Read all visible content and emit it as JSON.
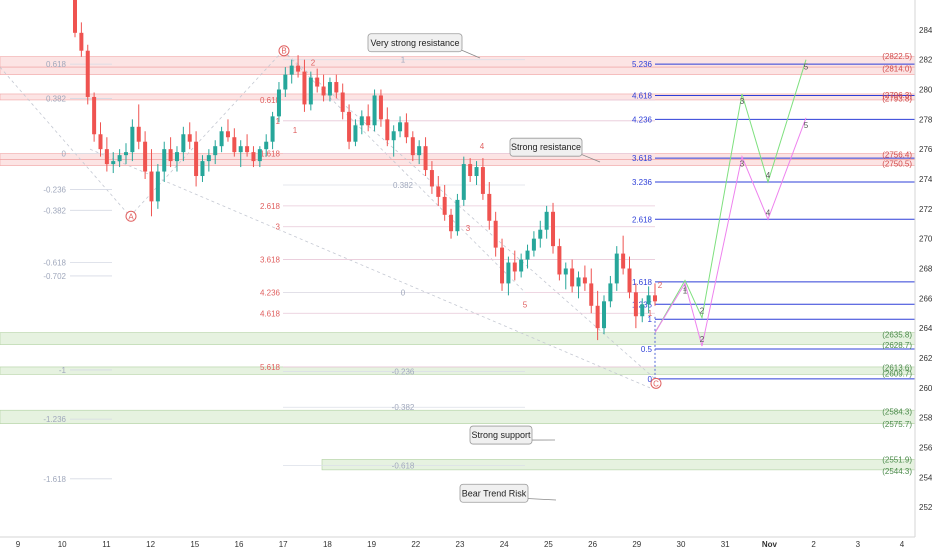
{
  "chart_data": {
    "type": "candlestick",
    "y_axis": {
      "min": 2500,
      "max": 2860,
      "ticks": [
        2520,
        2540,
        2560,
        2580,
        2600,
        2620,
        2640,
        2660,
        2680,
        2700,
        2720,
        2740,
        2760,
        2780,
        2800,
        2820,
        2840
      ]
    },
    "x_axis": {
      "tick_labels": [
        "9",
        "10",
        "11",
        "12",
        "15",
        "16",
        "17",
        "18",
        "19",
        "22",
        "23",
        "24",
        "25",
        "26",
        "29",
        "30",
        "31",
        "Nov",
        "2",
        "3",
        "4"
      ]
    },
    "candles": [
      [
        2860,
        2866,
        2835,
        2838
      ],
      [
        2838,
        2845,
        2822,
        2826
      ],
      [
        2826,
        2830,
        2790,
        2795
      ],
      [
        2795,
        2798,
        2765,
        2770
      ],
      [
        2770,
        2778,
        2755,
        2760
      ],
      [
        2760,
        2768,
        2745,
        2750
      ],
      [
        2750,
        2758,
        2744,
        2752
      ],
      [
        2752,
        2760,
        2748,
        2756
      ],
      [
        2756,
        2764,
        2750,
        2758
      ],
      [
        2758,
        2780,
        2752,
        2775
      ],
      [
        2775,
        2790,
        2760,
        2765
      ],
      [
        2765,
        2772,
        2740,
        2745
      ],
      [
        2745,
        2760,
        2715,
        2725
      ],
      [
        2725,
        2750,
        2720,
        2745
      ],
      [
        2745,
        2765,
        2738,
        2760
      ],
      [
        2760,
        2768,
        2748,
        2752
      ],
      [
        2752,
        2762,
        2745,
        2758
      ],
      [
        2758,
        2775,
        2752,
        2770
      ],
      [
        2770,
        2778,
        2760,
        2765
      ],
      [
        2765,
        2772,
        2735,
        2742
      ],
      [
        2742,
        2756,
        2738,
        2752
      ],
      [
        2752,
        2760,
        2745,
        2756
      ],
      [
        2756,
        2766,
        2750,
        2762
      ],
      [
        2762,
        2775,
        2758,
        2772
      ],
      [
        2772,
        2780,
        2765,
        2768
      ],
      [
        2768,
        2774,
        2755,
        2758
      ],
      [
        2758,
        2766,
        2748,
        2762
      ],
      [
        2762,
        2770,
        2755,
        2758
      ],
      [
        2758,
        2762,
        2748,
        2752
      ],
      [
        2752,
        2762,
        2748,
        2760
      ],
      [
        2760,
        2770,
        2755,
        2765
      ],
      [
        2765,
        2785,
        2760,
        2782
      ],
      [
        2782,
        2805,
        2778,
        2800
      ],
      [
        2800,
        2815,
        2795,
        2810
      ],
      [
        2810,
        2820,
        2804,
        2816
      ],
      [
        2816,
        2823,
        2808,
        2812
      ],
      [
        2812,
        2820,
        2785,
        2790
      ],
      [
        2790,
        2812,
        2786,
        2808
      ],
      [
        2808,
        2814,
        2798,
        2802
      ],
      [
        2802,
        2810,
        2792,
        2796
      ],
      [
        2796,
        2808,
        2792,
        2805
      ],
      [
        2805,
        2810,
        2794,
        2798
      ],
      [
        2798,
        2804,
        2780,
        2785
      ],
      [
        2785,
        2790,
        2760,
        2765
      ],
      [
        2765,
        2780,
        2762,
        2776
      ],
      [
        2776,
        2786,
        2770,
        2782
      ],
      [
        2782,
        2790,
        2772,
        2776
      ],
      [
        2776,
        2800,
        2772,
        2796
      ],
      [
        2796,
        2800,
        2775,
        2780
      ],
      [
        2780,
        2788,
        2762,
        2766
      ],
      [
        2766,
        2776,
        2755,
        2772
      ],
      [
        2772,
        2782,
        2768,
        2778
      ],
      [
        2778,
        2784,
        2764,
        2768
      ],
      [
        2768,
        2772,
        2752,
        2756
      ],
      [
        2756,
        2766,
        2750,
        2762
      ],
      [
        2762,
        2768,
        2742,
        2746
      ],
      [
        2746,
        2752,
        2730,
        2735
      ],
      [
        2735,
        2742,
        2722,
        2728
      ],
      [
        2728,
        2736,
        2712,
        2716
      ],
      [
        2716,
        2720,
        2700,
        2705
      ],
      [
        2705,
        2730,
        2702,
        2726
      ],
      [
        2726,
        2755,
        2722,
        2750
      ],
      [
        2750,
        2754,
        2738,
        2742
      ],
      [
        2742,
        2752,
        2736,
        2748
      ],
      [
        2748,
        2754,
        2726,
        2730
      ],
      [
        2730,
        2738,
        2706,
        2712
      ],
      [
        2712,
        2718,
        2688,
        2694
      ],
      [
        2694,
        2700,
        2665,
        2670
      ],
      [
        2670,
        2688,
        2662,
        2684
      ],
      [
        2684,
        2692,
        2672,
        2678
      ],
      [
        2678,
        2690,
        2674,
        2686
      ],
      [
        2686,
        2696,
        2680,
        2692
      ],
      [
        2692,
        2705,
        2688,
        2700
      ],
      [
        2700,
        2712,
        2694,
        2706
      ],
      [
        2706,
        2722,
        2700,
        2718
      ],
      [
        2718,
        2724,
        2690,
        2695
      ],
      [
        2695,
        2700,
        2672,
        2676
      ],
      [
        2676,
        2684,
        2666,
        2680
      ],
      [
        2680,
        2686,
        2664,
        2668
      ],
      [
        2668,
        2678,
        2660,
        2674
      ],
      [
        2674,
        2682,
        2665,
        2670
      ],
      [
        2670,
        2680,
        2650,
        2655
      ],
      [
        2655,
        2665,
        2632,
        2640
      ],
      [
        2640,
        2662,
        2636,
        2658
      ],
      [
        2658,
        2675,
        2654,
        2670
      ],
      [
        2670,
        2695,
        2665,
        2690
      ],
      [
        2690,
        2702,
        2676,
        2680
      ],
      [
        2680,
        2688,
        2660,
        2664
      ],
      [
        2664,
        2670,
        2640,
        2648
      ],
      [
        2648,
        2660,
        2644,
        2656
      ],
      [
        2656,
        2668,
        2650,
        2662
      ],
      [
        2662,
        2670,
        2655,
        2658
      ]
    ],
    "fib_left": [
      {
        "label": "0.618",
        "price": 2817
      },
      {
        "label": "0.382",
        "price": 2794
      },
      {
        "label": "0",
        "price": 2757
      },
      {
        "label": "-0.236",
        "price": 2733
      },
      {
        "label": "-0.382",
        "price": 2719
      },
      {
        "label": "-0.618",
        "price": 2684
      },
      {
        "label": "-0.702",
        "price": 2675
      },
      {
        "label": "-1",
        "price": 2612
      },
      {
        "label": "-1.236",
        "price": 2579
      },
      {
        "label": "-1.618",
        "price": 2539
      }
    ],
    "fib_mid": [
      {
        "label": "0.618",
        "price": 2793
      },
      {
        "label": "1",
        "price": 2779
      },
      {
        "label": "1.618",
        "price": 2757
      },
      {
        "label": "2.618",
        "price": 2722
      },
      {
        "label": "3",
        "price": 2708
      },
      {
        "label": "3.618",
        "price": 2686
      },
      {
        "label": "4.236",
        "price": 2664
      },
      {
        "label": "4.618",
        "price": 2650
      },
      {
        "label": "5.618",
        "price": 2614
      }
    ],
    "fib_inner": [
      {
        "label": "1",
        "price": 2820
      },
      {
        "label": "0.382",
        "price": 2736
      },
      {
        "label": "0",
        "price": 2664
      },
      {
        "label": "-0.236",
        "price": 2611
      },
      {
        "label": "-0.382",
        "price": 2587
      },
      {
        "label": "-0.618",
        "price": 2548
      }
    ],
    "fib_right": [
      {
        "label": "5.236",
        "price": 2817
      },
      {
        "label": "4.618",
        "price": 2796
      },
      {
        "label": "4.236",
        "price": 2780
      },
      {
        "label": "3.618",
        "price": 2754
      },
      {
        "label": "3.236",
        "price": 2738
      },
      {
        "label": "2.618",
        "price": 2713
      },
      {
        "label": "1.618",
        "price": 2671
      },
      {
        "label": "1.235",
        "price": 2656
      },
      {
        "label": "1",
        "price": 2646
      },
      {
        "label": "0.5",
        "price": 2626
      },
      {
        "label": "0",
        "price": 2606
      }
    ],
    "zones": [
      {
        "top": 2822,
        "bottom": 2815,
        "kind": "resistance"
      },
      {
        "top": 2815,
        "bottom": 2810,
        "kind": "resistance"
      },
      {
        "top": 2797,
        "bottom": 2793,
        "kind": "resistance"
      },
      {
        "top": 2757,
        "bottom": 2753,
        "kind": "resistance"
      },
      {
        "top": 2753,
        "bottom": 2749,
        "kind": "resistance"
      },
      {
        "top": 2637,
        "bottom": 2629,
        "kind": "support"
      },
      {
        "top": 2614,
        "bottom": 2609,
        "kind": "support"
      },
      {
        "top": 2585,
        "bottom": 2576,
        "kind": "support"
      },
      {
        "top": 2552,
        "bottom": 2545,
        "kind": "support"
      }
    ],
    "price_tags": [
      {
        "text": "(2822.5)",
        "price": 2822.5,
        "color": "#d24b4b"
      },
      {
        "text": "(2814.0)",
        "price": 2814,
        "color": "#d24b4b"
      },
      {
        "text": "(2796.3)",
        "price": 2796.3,
        "color": "#d24b4b"
      },
      {
        "text": "(2793.8)",
        "price": 2793.8,
        "color": "#d24b4b"
      },
      {
        "text": "(2756.4)",
        "price": 2756.4,
        "color": "#d24b4b"
      },
      {
        "text": "(2750.5)",
        "price": 2750.5,
        "color": "#d24b4b"
      },
      {
        "text": "(2635.8)",
        "price": 2635.8,
        "color": "#4a8a4a"
      },
      {
        "text": "(2628.7)",
        "price": 2628.7,
        "color": "#4a8a4a"
      },
      {
        "text": "(2613.6)",
        "price": 2613.6,
        "color": "#4a8a4a"
      },
      {
        "text": "(2609.7)",
        "price": 2609.7,
        "color": "#4a8a4a"
      },
      {
        "text": "(2584.3)",
        "price": 2584.3,
        "color": "#4a8a4a"
      },
      {
        "text": "(2575.7)",
        "price": 2575.7,
        "color": "#4a8a4a"
      },
      {
        "text": "(2551.9)",
        "price": 2551.9,
        "color": "#4a8a4a"
      },
      {
        "text": "(2544.3)",
        "price": 2544.3,
        "color": "#4a8a4a"
      }
    ],
    "callouts": [
      {
        "text": "Very strong resistance",
        "price": 2832
      },
      {
        "text": "Strong resistance",
        "price": 2762
      },
      {
        "text": "Strong support",
        "price": 2569
      },
      {
        "text": "Bear Trend Risk",
        "price": 2530
      }
    ],
    "wave_green": [
      {
        "label": "",
        "price": 2637
      },
      {
        "label": "1",
        "price": 2672
      },
      {
        "label": "2",
        "price": 2647
      },
      {
        "label": "3",
        "price": 2797
      },
      {
        "label": "4",
        "price": 2738
      },
      {
        "label": "5",
        "price": 2820
      }
    ],
    "wave_pink": [
      {
        "label": "",
        "price": 2637
      },
      {
        "label": "1",
        "price": 2670
      },
      {
        "label": "2",
        "price": 2628
      },
      {
        "label": "3",
        "price": 2755
      },
      {
        "label": "4",
        "price": 2713
      },
      {
        "label": "5",
        "price": 2781
      }
    ],
    "wave_red_labels": [
      {
        "label": "1",
        "price": 2771
      },
      {
        "label": "2",
        "price": 2816
      },
      {
        "label": "3",
        "price": 2705
      },
      {
        "label": "4",
        "price": 2760
      },
      {
        "label": "5",
        "price": 2654
      },
      {
        "label": "1",
        "price": 2648
      },
      {
        "label": "2",
        "price": 2667
      }
    ],
    "circle_labels": [
      {
        "label": "A",
        "price": 2715
      },
      {
        "label": "B",
        "price": 2826
      },
      {
        "label": "C",
        "price": 2603
      }
    ],
    "colors": {
      "up": "#26a69a",
      "down": "#ef5350",
      "resistance": "#fce4e4",
      "support": "#e6f2e0",
      "fib_blue": "#2e3fd8",
      "fib_red": "#e06060",
      "fib_grey": "#a0a8bc"
    }
  }
}
